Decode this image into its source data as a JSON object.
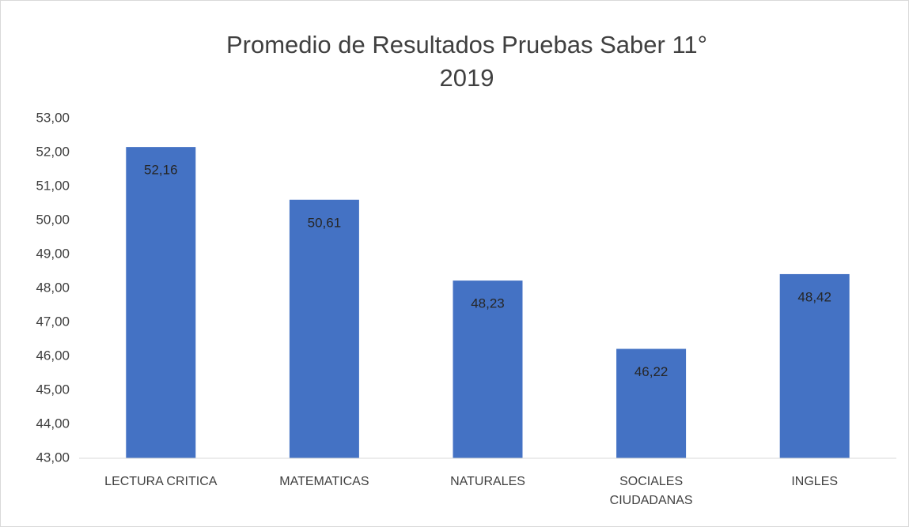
{
  "chart_data": {
    "type": "bar",
    "title": "Promedio de Resultados Pruebas Saber 11° 2019",
    "categories": [
      "LECTURA CRITICA",
      "MATEMATICAS",
      "NATURALES",
      "SOCIALES CIUDADANAS",
      "INGLES"
    ],
    "values": [
      52.16,
      50.61,
      48.23,
      46.22,
      48.42
    ],
    "value_labels": [
      "52,16",
      "50,61",
      "48,23",
      "46,22",
      "48,42"
    ],
    "color": "#4472c4",
    "ylim": [
      43,
      53
    ],
    "yticks": [
      {
        "value": 43,
        "label": "43,00"
      },
      {
        "value": 44,
        "label": "44,00"
      },
      {
        "value": 45,
        "label": "45,00"
      },
      {
        "value": 46,
        "label": "46,00"
      },
      {
        "value": 47,
        "label": "47,00"
      },
      {
        "value": 48,
        "label": "48,00"
      },
      {
        "value": 49,
        "label": "49,00"
      },
      {
        "value": 50,
        "label": "50,00"
      },
      {
        "value": 51,
        "label": "51,00"
      },
      {
        "value": 52,
        "label": "52,00"
      },
      {
        "value": 53,
        "label": "53,00"
      }
    ],
    "grid": false
  }
}
